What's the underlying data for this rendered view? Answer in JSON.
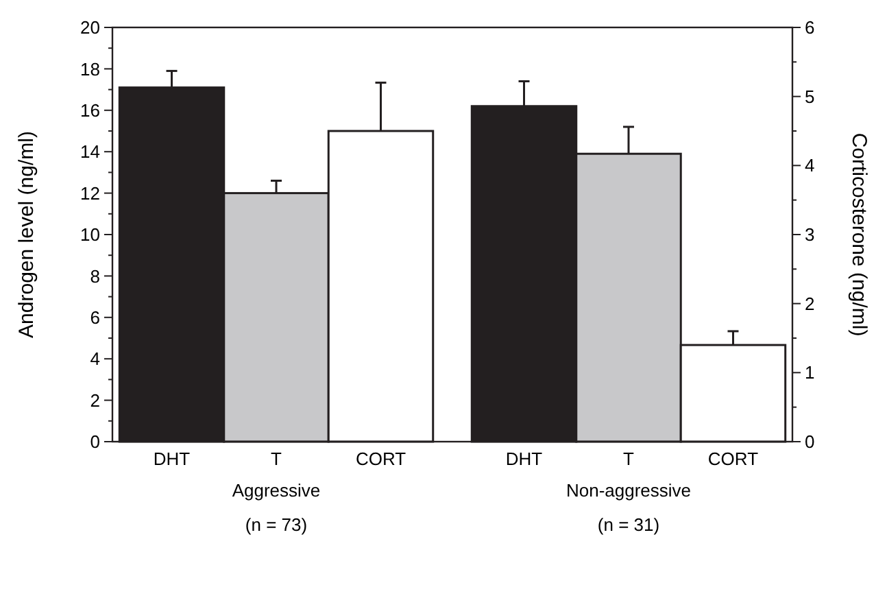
{
  "chart_data": {
    "type": "bar",
    "categories": [
      "Aggressive\n(n = 73)",
      "Non-aggressive\n(n = 31)"
    ],
    "ylabel": "Androgen level (ng/ml)",
    "y2label": "Corticosterone (ng/ml)",
    "series": [
      {
        "name": "DHT",
        "color": "#231f20",
        "values": [
          17.1,
          16.2
        ],
        "errors": [
          [
            17.1,
            17.9
          ],
          [
            16.2,
            17.4
          ]
        ]
      },
      {
        "name": "T",
        "color": "#c8c8ca",
        "values": [
          12.0,
          13.9
        ],
        "errors": [
          [
            12.0,
            12.6
          ],
          [
            13.9,
            15.2
          ]
        ]
      },
      {
        "name": "CORT",
        "color": "#ffffff",
        "axis": "y2",
        "values": [
          4.5,
          1.4
        ],
        "errors": [
          [
            4.5,
            5.2
          ],
          [
            1.4,
            1.6
          ]
        ]
      }
    ],
    "ylim": [
      0,
      20
    ],
    "yticks": [
      0,
      {
        "value": 1,
        "label": null
      },
      2,
      {
        "value": 3,
        "label": null
      },
      4,
      {
        "value": 5,
        "label": null
      },
      6,
      {
        "value": 7,
        "label": null
      },
      8,
      {
        "value": 9,
        "label": null
      },
      10,
      {
        "value": 11,
        "label": null
      },
      12,
      {
        "value": 13,
        "label": null
      },
      14,
      {
        "value": 15,
        "label": null
      },
      16,
      {
        "value": 17,
        "label": null
      },
      18,
      {
        "value": 19,
        "label": null
      },
      20
    ],
    "y2lim": [
      0,
      6
    ],
    "y2ticks": [
      0,
      {
        "value": 0.5,
        "label": null
      },
      1,
      {
        "value": 1.5,
        "label": null
      },
      2,
      {
        "value": 2.5,
        "label": null
      },
      3,
      {
        "value": 3.5,
        "label": null
      },
      4,
      {
        "value": 4.5,
        "label": null
      },
      5,
      {
        "value": 5.5,
        "label": null
      },
      6
    ],
    "grid": false
  }
}
